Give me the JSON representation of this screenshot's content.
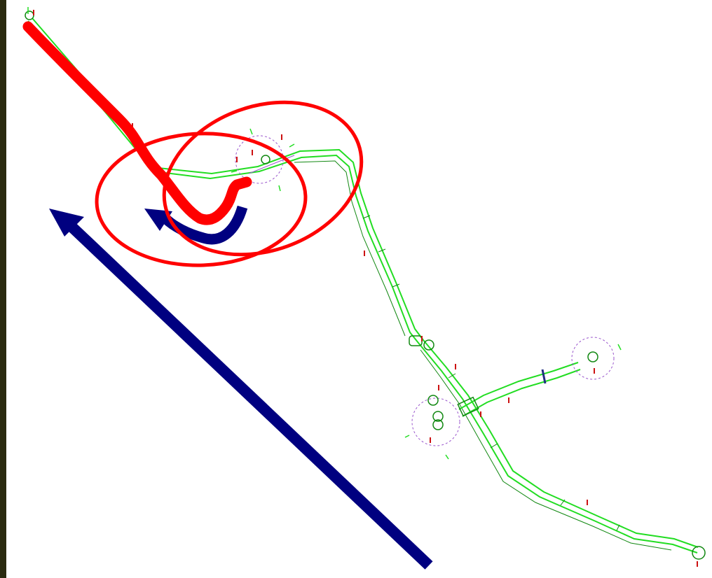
{
  "colors": {
    "page_background": "#ffffff",
    "left_border": "#2a2a10",
    "alignment_line": "#22dd22",
    "alignment_line_dark": "#118811",
    "construction_line": "#9955cc",
    "station_marker": "#cc1111",
    "highlight_path": "#ff0000",
    "highlight_ellipse": "#ff0000",
    "direction_arrow": "#000080",
    "crossing_mark": "#203080"
  },
  "elements": {
    "highlight_path": "red-hand-drawn-path",
    "highlight_ellipses": [
      "red-ellipse-large",
      "red-ellipse-upper"
    ],
    "arrows": [
      "blue-long-diagonal-arrow",
      "blue-curved-arrow"
    ],
    "features": [
      "pipeline-alignment",
      "branch-alignment",
      "circular-structures",
      "station-markers"
    ]
  }
}
